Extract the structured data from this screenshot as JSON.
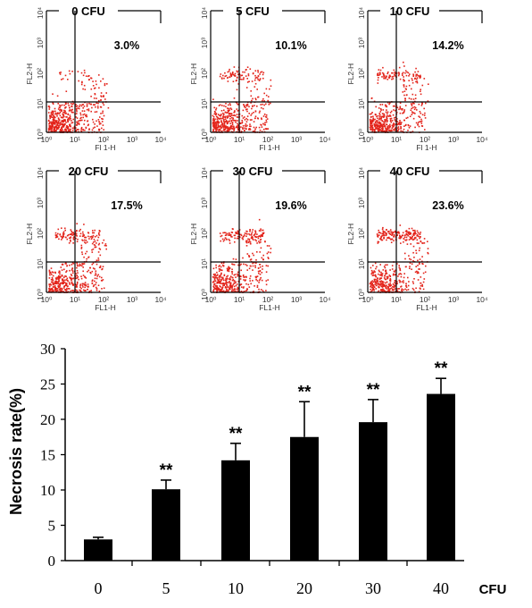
{
  "chart_data": [
    {
      "type": "scatter",
      "panels": [
        {
          "label": "0 CFU",
          "percent": "3.0%",
          "ylabel": "FL2-H",
          "xlabel": "Fl 1-H"
        },
        {
          "label": "5 CFU",
          "percent": "10.1%",
          "ylabel": "FL2-H",
          "xlabel": "Fl 1-H"
        },
        {
          "label": "10 CFU",
          "percent": "14.2%",
          "ylabel": "FL2-H",
          "xlabel": "Fl 1-H"
        },
        {
          "label": "20 CFU",
          "percent": "17.5%",
          "ylabel": "FL2-H",
          "xlabel": "FL1-H"
        },
        {
          "label": "30 CFU",
          "percent": "19.6%",
          "ylabel": "FL2-H",
          "xlabel": "FL1-H"
        },
        {
          "label": "40 CFU",
          "percent": "23.6%",
          "ylabel": "FL2-H",
          "xlabel": "FL1-H"
        }
      ],
      "axis_ticks": [
        "10⁰",
        "10¹",
        "10²",
        "10³",
        "10⁴"
      ],
      "xlim": [
        1,
        10000
      ],
      "ylim": [
        1,
        10000
      ],
      "log_scale": true,
      "gate": {
        "x": 10,
        "y": 10
      },
      "point_color": "#e3241b"
    },
    {
      "type": "bar",
      "categories": [
        "0",
        "5",
        "10",
        "20",
        "30",
        "40"
      ],
      "values": [
        3.0,
        10.1,
        14.2,
        17.5,
        19.6,
        23.6
      ],
      "errors": [
        0.3,
        1.3,
        2.4,
        5.0,
        3.2,
        2.2
      ],
      "significance": [
        "",
        "**",
        "**",
        "**",
        "**",
        "**"
      ],
      "ylabel": "Necrosis rate(%)",
      "xunit": "CFU",
      "ylim": [
        0,
        30
      ],
      "yticks": [
        0,
        5,
        10,
        15,
        20,
        25,
        30
      ],
      "bar_color": "#000000"
    }
  ]
}
